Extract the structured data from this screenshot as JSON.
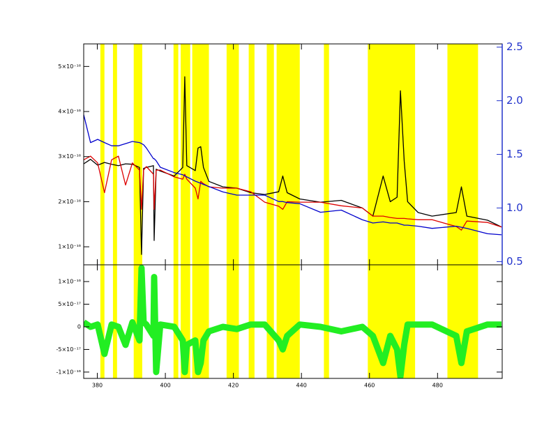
{
  "chart_data": [
    {
      "type": "line",
      "x": [
        376,
        378,
        380.1,
        382.1,
        384.2,
        386.2,
        388.3,
        390.3,
        392.4,
        393.0,
        393.6,
        394.4,
        396.5,
        396.7,
        397.3,
        398.5,
        402.6,
        405.1,
        405.7,
        406.3,
        408.8,
        409.6,
        410.4,
        411.2,
        412.8,
        416.9,
        421.0,
        425.1,
        429.2,
        433.3,
        434.5,
        435.8,
        439.5,
        445.6,
        451.7,
        457.9,
        461.0,
        464.0,
        466.1,
        468.1,
        469.1,
        470.2,
        471.2,
        474.3,
        478.4,
        485.5,
        487.0,
        488.6,
        494.7,
        498.8
      ],
      "xlim": [
        376,
        499
      ],
      "xticks": [
        380,
        400,
        420,
        440,
        460,
        480
      ],
      "ylim": [
        6e-17,
        5.5e-16
      ],
      "yticks": [
        {
          "value": 1e-16,
          "label": "1×10⁻¹⁶"
        },
        {
          "value": 2e-16,
          "label": "2×10⁻¹⁶"
        },
        {
          "value": 3e-16,
          "label": "3×10⁻¹⁶"
        },
        {
          "value": 4e-16,
          "label": "4×10⁻¹⁶"
        },
        {
          "value": 5e-16,
          "label": "5×10⁻¹⁶"
        }
      ],
      "y2lim": [
        0.47,
        2.53
      ],
      "y2ticks": [
        0.5,
        {
          "value": 1,
          "label": "1.0"
        },
        1.5,
        {
          "value": 2,
          "label": "2.0"
        },
        2.5
      ],
      "y2color": "#2233cc",
      "bands_color": "#ffff00",
      "bands": [
        [
          380.9,
          382.1
        ],
        [
          384.6,
          385.8
        ],
        [
          390.7,
          393.2
        ],
        [
          402.4,
          403.8
        ],
        [
          404.5,
          407.3
        ],
        [
          407.9,
          412.8
        ],
        [
          418.0,
          421.6
        ],
        [
          424.5,
          426.2
        ],
        [
          429.8,
          431.9
        ],
        [
          432.7,
          439.5
        ],
        [
          446.6,
          448.1
        ],
        [
          459.5,
          473.4
        ],
        [
          482.9,
          491.9
        ]
      ],
      "series": [
        {
          "color": "#000000",
          "values": [
            2.84e-16,
            2.94e-16,
            2.81e-16,
            2.87e-16,
            2.83e-16,
            2.8e-16,
            2.84e-16,
            2.83e-16,
            2.76e-16,
            8.3e-17,
            2.74e-16,
            2.76e-16,
            2.8e-16,
            1.14e-16,
            2.72e-16,
            2.68e-16,
            2.57e-16,
            2.76e-16,
            4.77e-16,
            2.8e-16,
            2.69e-16,
            3.19e-16,
            3.22e-16,
            2.76e-16,
            2.45e-16,
            2.33e-16,
            2.3e-16,
            2.2e-16,
            2.16e-16,
            2.22e-16,
            2.57e-16,
            2.2e-16,
            2.06e-16,
            1.99e-16,
            2.03e-16,
            1.86e-16,
            1.68e-16,
            2.57e-16,
            2e-16,
            2.1e-16,
            4.46e-16,
            2.9e-16,
            2e-16,
            1.76e-16,
            1.68e-16,
            1.76e-16,
            2.33e-16,
            1.68e-16,
            1.59e-16,
            1.44e-16
          ]
        },
        {
          "color": "#dd0000",
          "values": [
            2.93e-16,
            3.01e-16,
            2.86e-16,
            2.2e-16,
            2.93e-16,
            3.01e-16,
            2.37e-16,
            2.86e-16,
            2.7e-16,
            1.83e-16,
            2.7e-16,
            2.78e-16,
            2.61e-16,
            1.83e-16,
            2.7e-16,
            2.7e-16,
            2.55e-16,
            2.5e-16,
            2.61e-16,
            2.5e-16,
            2.3e-16,
            2.06e-16,
            2.45e-16,
            2.4e-16,
            2.33e-16,
            2.3e-16,
            2.3e-16,
            2.22e-16,
            1.99e-16,
            1.9e-16,
            1.83e-16,
            2e-16,
            1.99e-16,
            1.99e-16,
            1.91e-16,
            1.86e-16,
            1.68e-16,
            1.68e-16,
            1.65e-16,
            1.63e-16,
            1.63e-16,
            1.63e-16,
            1.62e-16,
            1.6e-16,
            1.6e-16,
            1.45e-16,
            1.37e-16,
            1.57e-16,
            1.54e-16,
            1.44e-16
          ]
        },
        {
          "color": "#0000cc",
          "axis": "y2",
          "values": [
            1.87,
            1.61,
            1.64,
            1.61,
            1.58,
            1.58,
            1.6,
            1.62,
            1.61,
            1.6,
            1.59,
            1.56,
            1.46,
            1.46,
            1.44,
            1.38,
            1.33,
            1.31,
            1.3,
            1.29,
            1.25,
            1.24,
            1.23,
            1.22,
            1.2,
            1.15,
            1.12,
            1.12,
            1.12,
            1.06,
            1.06,
            1.05,
            1.04,
            0.96,
            0.98,
            0.89,
            0.86,
            0.87,
            0.86,
            0.86,
            0.85,
            0.84,
            0.84,
            0.83,
            0.81,
            0.83,
            0.82,
            0.81,
            0.76,
            0.75
          ]
        }
      ]
    },
    {
      "type": "line",
      "x": [
        376,
        378,
        380.1,
        382.1,
        384.2,
        386.2,
        388.3,
        390.3,
        392.4,
        393.0,
        393.6,
        394.4,
        396.5,
        396.7,
        397.3,
        398.5,
        402.6,
        405.1,
        405.7,
        406.3,
        408.8,
        409.6,
        410.4,
        411.2,
        412.8,
        416.9,
        421.0,
        425.1,
        429.2,
        433.3,
        434.5,
        435.8,
        439.5,
        445.6,
        451.7,
        457.9,
        461.0,
        464.0,
        466.1,
        468.1,
        469.1,
        470.2,
        471.2,
        474.3,
        478.4,
        485.5,
        487.0,
        488.6,
        494.7,
        498.8
      ],
      "xlim": [
        376,
        499
      ],
      "xticks": [
        380,
        400,
        420,
        440,
        460,
        480
      ],
      "ylim": [
        -1.14e-16,
        1.37e-16
      ],
      "yticks": [
        {
          "value": 1e-16,
          "label": "1×10⁻¹⁶"
        },
        {
          "value": 5e-17,
          "label": "5×10⁻¹⁷"
        },
        0,
        {
          "value": -5e-17,
          "label": "-5×10⁻¹⁷"
        },
        {
          "value": -1e-16,
          "label": "-1×10⁻¹⁶"
        }
      ],
      "series": [
        {
          "color": "#22ee22",
          "values": [
            1e-17,
            0,
            5e-18,
            -6e-17,
            5e-18,
            0,
            -4e-17,
            1e-17,
            -3e-17,
            1.3e-16,
            1e-17,
            5e-18,
            -2e-17,
            1.1e-16,
            -1e-16,
            5e-18,
            0,
            -3e-17,
            -1e-16,
            -4e-17,
            -3e-17,
            -1e-16,
            -8e-17,
            -3e-17,
            -1e-17,
            0,
            -5e-18,
            5e-18,
            5e-18,
            -3e-17,
            -5e-17,
            -2e-17,
            5e-18,
            0,
            -1e-17,
            0,
            -2e-17,
            -8e-17,
            -2e-17,
            -5e-17,
            -1.1e-16,
            -4e-17,
            5e-18,
            5e-18,
            5e-18,
            -2e-17,
            -8e-17,
            -1e-17,
            5e-18,
            5e-18
          ]
        }
      ]
    }
  ]
}
